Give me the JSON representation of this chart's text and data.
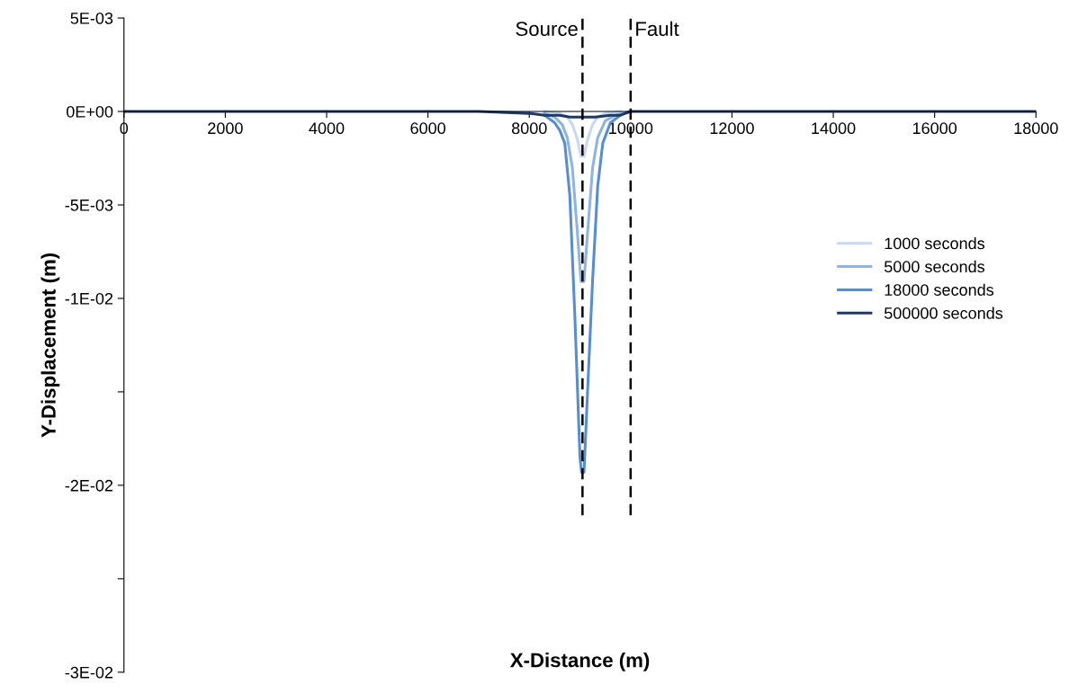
{
  "chart_data": {
    "type": "line",
    "xlabel": "X-Distance (m)",
    "ylabel": "Y-Displacement (m)",
    "xlim": [
      0,
      18000
    ],
    "xticks": [
      0,
      2000,
      4000,
      6000,
      8000,
      10000,
      12000,
      14000,
      16000,
      18000
    ],
    "ylim": [
      -0.03,
      0.005
    ],
    "yticks": [
      {
        "value": 0.005,
        "label": "5E-03"
      },
      {
        "value": 0,
        "label": "0E+00"
      },
      {
        "value": -0.005,
        "label": "-5E-03"
      },
      {
        "value": -0.01,
        "label": "-1E-02"
      },
      {
        "value": -0.015,
        "label": null
      },
      {
        "value": -0.02,
        "label": "-2E-02"
      },
      {
        "value": -0.025,
        "label": null
      },
      {
        "value": -0.03,
        "label": "-3E-02"
      }
    ],
    "grid": false,
    "legend": "center right",
    "marker": "none",
    "line_style": "solid",
    "series": [
      {
        "name": "1000 seconds",
        "color": "#c6d9f1",
        "x": [
          8300,
          8600,
          8750,
          8850,
          8950,
          9020,
          9080,
          9150,
          9250,
          9350,
          9500,
          9800
        ],
        "values": [
          0,
          -0.0001,
          -0.0003,
          -0.0007,
          -0.0015,
          -0.0024,
          -0.0024,
          -0.0015,
          -0.0007,
          -0.0003,
          -0.0001,
          0
        ]
      },
      {
        "name": "5000 seconds",
        "color": "#8eb4e3",
        "x": [
          8300,
          8500,
          8650,
          8750,
          8850,
          8950,
          9020,
          9080,
          9150,
          9250,
          9350,
          9500,
          9700,
          10000
        ],
        "values": [
          -0.0001,
          -0.0003,
          -0.0007,
          -0.0014,
          -0.003,
          -0.0065,
          -0.0091,
          -0.0091,
          -0.0065,
          -0.003,
          -0.0014,
          -0.0005,
          -0.0002,
          0
        ]
      },
      {
        "name": "18000 seconds",
        "color": "#558ed5",
        "x": [
          8300,
          8500,
          8600,
          8700,
          8800,
          8900,
          9000,
          9030,
          9080,
          9150,
          9250,
          9350,
          9450,
          9600,
          9800
        ],
        "values": [
          -0.0002,
          -0.0006,
          -0.001,
          -0.0017,
          -0.0045,
          -0.011,
          -0.0185,
          -0.0193,
          -0.0193,
          -0.015,
          -0.009,
          -0.004,
          -0.0017,
          -0.0006,
          -0.0002
        ]
      },
      {
        "name": "500000 seconds",
        "color": "#1f3864",
        "x": [
          0,
          7000,
          8000,
          8300,
          8600,
          8800,
          9050,
          9300,
          9600,
          9800,
          10000,
          11000,
          18000
        ],
        "values": [
          0,
          0,
          -0.0001,
          -0.0002,
          -0.0002,
          -0.0003,
          -0.0003,
          -0.0003,
          -0.0002,
          -0.0002,
          0,
          0,
          0
        ]
      }
    ],
    "ref_lines": [
      {
        "axis": "x",
        "value": 9050,
        "label": "Source",
        "color": "#000000",
        "line_style": "dashed"
      },
      {
        "axis": "x",
        "value": 10000,
        "label": "Fault",
        "color": "#000000",
        "line_style": "dashed"
      }
    ]
  }
}
